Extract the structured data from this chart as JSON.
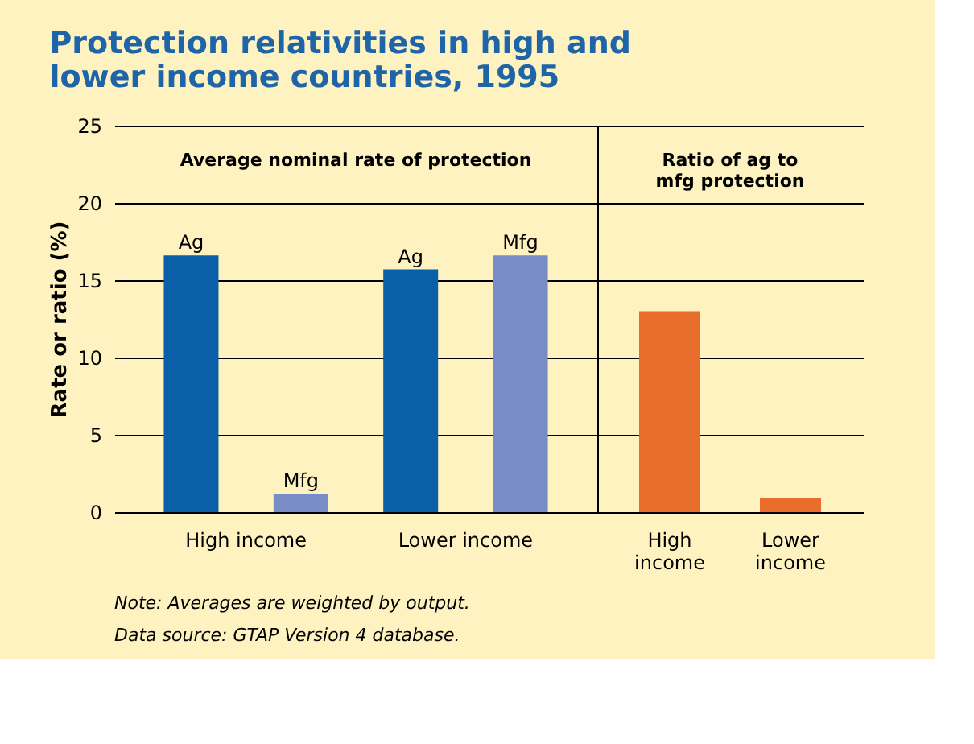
{
  "chart_data": [
    {
      "type": "bar",
      "title": "Protection relativities in high and lower income countries, 1995",
      "subtitle": "Average nominal rate of protection",
      "ylabel": "Rate or ratio (%)",
      "categories": [
        "High income",
        "Lower income"
      ],
      "series": [
        {
          "name": "Ag",
          "color": "#0b5fa8",
          "values": [
            16.6,
            15.7
          ]
        },
        {
          "name": "Mfg",
          "color": "#788dc6",
          "values": [
            1.2,
            16.6
          ]
        }
      ],
      "ylim": [
        0,
        25
      ],
      "yticks": [
        0,
        5,
        10,
        15,
        20,
        25
      ],
      "grid": "y",
      "legend": false,
      "annotations": [
        "Note: Averages are weighted by output.",
        "Data source: GTAP Version 4 database."
      ]
    },
    {
      "type": "bar",
      "subtitle": "Ratio of ag to mfg protection",
      "categories": [
        "High income",
        "Lower income"
      ],
      "series": [
        {
          "color": "#e96d2c",
          "values": [
            13.0,
            0.9
          ]
        }
      ],
      "ylim": [
        0,
        25
      ],
      "yticks": [
        0,
        5,
        10,
        15,
        20,
        25
      ],
      "grid": "y",
      "legend": false,
      "tick_labels": "x"
    }
  ]
}
